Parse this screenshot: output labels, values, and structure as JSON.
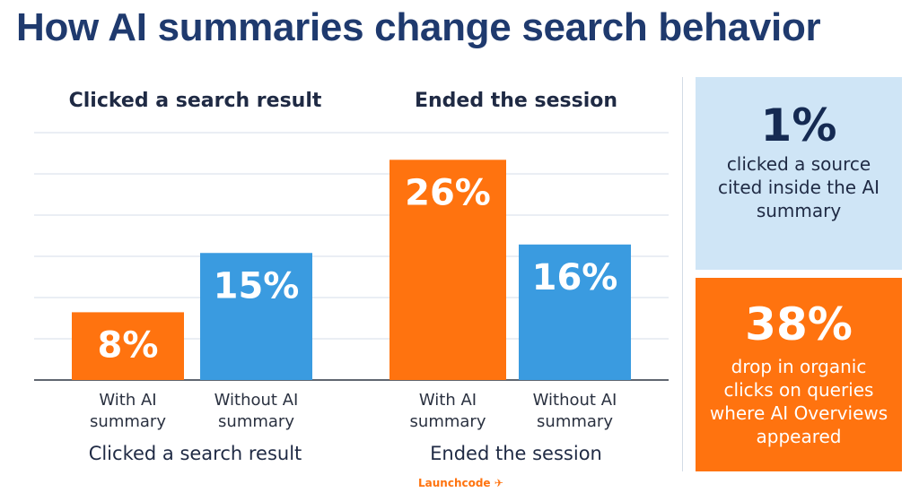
{
  "title": "How AI summaries change search behavior",
  "chart_data": [
    {
      "type": "bar",
      "title": "Clicked a search result",
      "caption": "Clicked a search result",
      "categories": [
        "With AI summary",
        "Without AI summary"
      ],
      "values": [
        8,
        15
      ],
      "value_labels": [
        "8%",
        "15%"
      ],
      "colors": [
        "#ff730f",
        "#3a9be0"
      ],
      "ylim": [
        0,
        30
      ],
      "grid": true
    },
    {
      "type": "bar",
      "title": "Ended the session",
      "caption": "Ended the session",
      "categories": [
        "With AI summary",
        "Without AI summary"
      ],
      "values": [
        26,
        16
      ],
      "value_labels": [
        "26%",
        "16%"
      ],
      "colors": [
        "#ff730f",
        "#3a9be0"
      ],
      "ylim": [
        0,
        30
      ],
      "grid": true
    }
  ],
  "callouts": [
    {
      "value": "1%",
      "text": "clicked a source cited inside the AI summary",
      "background": "#cfe5f6"
    },
    {
      "value": "38%",
      "text": "drop in organic clicks on queries where AI Overviews appeared",
      "background": "#ff730f"
    }
  ],
  "footer": {
    "logo": "Launchcode"
  }
}
